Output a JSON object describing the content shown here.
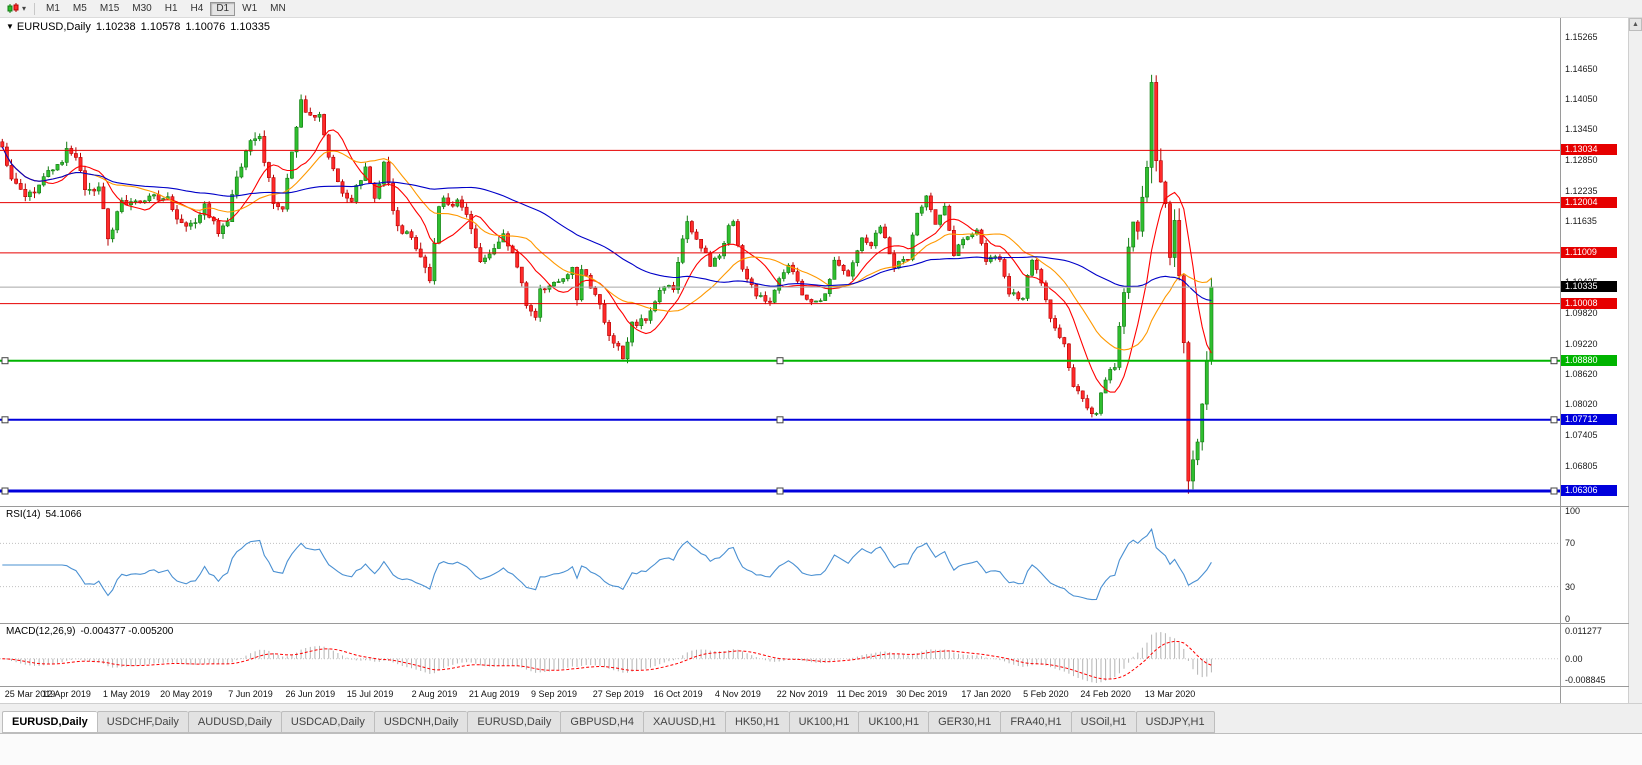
{
  "toolbar": {
    "timeframes": [
      {
        "label": "M1",
        "active": false
      },
      {
        "label": "M5",
        "active": false
      },
      {
        "label": "M15",
        "active": false
      },
      {
        "label": "M30",
        "active": false
      },
      {
        "label": "H1",
        "active": false
      },
      {
        "label": "H4",
        "active": false
      },
      {
        "label": "D1",
        "active": true
      },
      {
        "label": "W1",
        "active": false
      },
      {
        "label": "MN",
        "active": false
      }
    ]
  },
  "chart": {
    "header": {
      "marker": "▼",
      "symbol": "EURUSD,Daily",
      "open": "1.10238",
      "high": "1.10578",
      "low": "1.10076",
      "close": "1.10335"
    },
    "price_axis": {
      "min": 1.0601,
      "max": 1.1565,
      "ticks": [
        "1.15265",
        "1.14650",
        "1.14050",
        "1.13450",
        "1.12850",
        "1.12235",
        "1.11635",
        "1.10435",
        "1.09820",
        "1.09220",
        "1.08620",
        "1.08020",
        "1.07405",
        "1.06805"
      ]
    },
    "hlines": [
      {
        "price": 1.13034,
        "label": "1.13034",
        "color": "#e60000",
        "width": 1,
        "handles": false
      },
      {
        "price": 1.12004,
        "label": "1.12004",
        "color": "#e60000",
        "width": 1,
        "handles": false
      },
      {
        "price": 1.11009,
        "label": "1.11009",
        "color": "#e60000",
        "width": 1,
        "handles": false
      },
      {
        "price": 1.10008,
        "label": "1.10008",
        "color": "#e60000",
        "width": 1,
        "handles": false
      },
      {
        "price": 1.0888,
        "label": "1.08880",
        "color": "#00b400",
        "width": 2,
        "handles": true
      },
      {
        "price": 1.07712,
        "label": "1.07712",
        "color": "#0000dc",
        "width": 2,
        "handles": true
      },
      {
        "price": 1.06306,
        "label": "1.06306",
        "color": "#0000dc",
        "width": 3,
        "handles": true
      }
    ],
    "current_price": {
      "value": 1.10335,
      "label": "1.10335",
      "line_color": "#a6a6a6",
      "tag_bg": "#000000"
    },
    "candle_colors": {
      "bull_fill": "#2fbe2f",
      "bull_border": "#127a12",
      "bear_fill": "#ff2a2a",
      "bear_border": "#b40000"
    }
  },
  "chart_data": {
    "type": "candlestick",
    "symbol": "EURUSD",
    "timeframe": "Daily",
    "candle_count": 264,
    "data_width_fraction": 0.778,
    "note": "anchors are [candle_index, close_price, typical_daily_range] read off the chart; candles between anchors are interpolated",
    "anchors": [
      [
        0,
        1.131,
        0.003
      ],
      [
        2,
        1.1245,
        0.0026
      ],
      [
        4,
        1.1218,
        0.0022
      ],
      [
        7,
        1.1221,
        0.0022
      ],
      [
        10,
        1.1261,
        0.0022
      ],
      [
        12,
        1.1274,
        0.0022
      ],
      [
        14,
        1.1298,
        0.0024
      ],
      [
        16,
        1.1282,
        0.0024
      ],
      [
        18,
        1.1232,
        0.0026
      ],
      [
        21,
        1.1224,
        0.0024
      ],
      [
        23,
        1.1133,
        0.0028
      ],
      [
        24,
        1.115,
        0.0024
      ],
      [
        26,
        1.1195,
        0.0024
      ],
      [
        29,
        1.12,
        0.002
      ],
      [
        33,
        1.1216,
        0.002
      ],
      [
        36,
        1.1205,
        0.0018
      ],
      [
        39,
        1.1158,
        0.002
      ],
      [
        42,
        1.1153,
        0.002
      ],
      [
        44,
        1.1204,
        0.0022
      ],
      [
        47,
        1.1132,
        0.0022
      ],
      [
        49,
        1.1168,
        0.0026
      ],
      [
        51,
        1.1252,
        0.0026
      ],
      [
        54,
        1.1334,
        0.0028
      ],
      [
        56,
        1.1328,
        0.0022
      ],
      [
        59,
        1.1207,
        0.0026
      ],
      [
        61,
        1.1194,
        0.002
      ],
      [
        63,
        1.1294,
        0.0026
      ],
      [
        65,
        1.14,
        0.0028
      ],
      [
        67,
        1.137,
        0.002
      ],
      [
        69,
        1.1373,
        0.0018
      ],
      [
        71,
        1.1287,
        0.0024
      ],
      [
        74,
        1.1227,
        0.0022
      ],
      [
        76,
        1.1208,
        0.0018
      ],
      [
        79,
        1.127,
        0.0018
      ],
      [
        81,
        1.1212,
        0.0022
      ],
      [
        83,
        1.1277,
        0.0022
      ],
      [
        86,
        1.1151,
        0.0022
      ],
      [
        89,
        1.1128,
        0.0018
      ],
      [
        92,
        1.1076,
        0.0026
      ],
      [
        93,
        1.1035,
        0.003
      ],
      [
        95,
        1.1203,
        0.0028
      ],
      [
        99,
        1.1199,
        0.0016
      ],
      [
        101,
        1.1171,
        0.002
      ],
      [
        104,
        1.109,
        0.0022
      ],
      [
        106,
        1.11,
        0.0016
      ],
      [
        109,
        1.1144,
        0.0022
      ],
      [
        112,
        1.1079,
        0.0018
      ],
      [
        114,
        1.0989,
        0.0026
      ],
      [
        116,
        1.0973,
        0.0022
      ],
      [
        117,
        1.1034,
        0.0022
      ],
      [
        121,
        1.1043,
        0.0016
      ],
      [
        124,
        1.1073,
        0.0016
      ],
      [
        125,
        1.1005,
        0.0022
      ],
      [
        126,
        1.1072,
        0.0022
      ],
      [
        129,
        1.1017,
        0.0016
      ],
      [
        132,
        1.0945,
        0.0022
      ],
      [
        133,
        1.0921,
        0.0018
      ],
      [
        135,
        1.0899,
        0.0022
      ],
      [
        137,
        1.0959,
        0.0018
      ],
      [
        140,
        1.0973,
        0.0014
      ],
      [
        144,
        1.104,
        0.0018
      ],
      [
        146,
        1.1033,
        0.0016
      ],
      [
        148,
        1.1125,
        0.0022
      ],
      [
        149,
        1.1171,
        0.0022
      ],
      [
        151,
        1.1127,
        0.0016
      ],
      [
        154,
        1.108,
        0.0016
      ],
      [
        156,
        1.1099,
        0.0014
      ],
      [
        158,
        1.115,
        0.0014
      ],
      [
        159,
        1.1166,
        0.0014
      ],
      [
        161,
        1.1075,
        0.002
      ],
      [
        164,
        1.1018,
        0.0018
      ],
      [
        167,
        1.1007,
        0.0014
      ],
      [
        169,
        1.1052,
        0.0014
      ],
      [
        171,
        1.1078,
        0.0012
      ],
      [
        174,
        1.1021,
        0.0016
      ],
      [
        177,
        1.1001,
        0.0012
      ],
      [
        179,
        1.1018,
        0.0012
      ],
      [
        181,
        1.1082,
        0.0016
      ],
      [
        184,
        1.1059,
        0.0014
      ],
      [
        187,
        1.113,
        0.0016
      ],
      [
        189,
        1.112,
        0.0012
      ],
      [
        191,
        1.1153,
        0.0012
      ],
      [
        194,
        1.1077,
        0.0016
      ],
      [
        197,
        1.1087,
        0.001
      ],
      [
        199,
        1.1176,
        0.0016
      ],
      [
        201,
        1.1212,
        0.0016
      ],
      [
        203,
        1.116,
        0.0014
      ],
      [
        205,
        1.1196,
        0.0014
      ],
      [
        207,
        1.1103,
        0.0018
      ],
      [
        210,
        1.1134,
        0.0012
      ],
      [
        212,
        1.115,
        0.0012
      ],
      [
        214,
        1.109,
        0.0016
      ],
      [
        217,
        1.1093,
        0.0012
      ],
      [
        219,
        1.1024,
        0.0016
      ],
      [
        222,
        1.101,
        0.0012
      ],
      [
        224,
        1.1093,
        0.0018
      ],
      [
        226,
        1.1044,
        0.0016
      ],
      [
        229,
        1.0945,
        0.002
      ],
      [
        231,
        1.0917,
        0.0016
      ],
      [
        233,
        1.084,
        0.0018
      ],
      [
        236,
        1.0792,
        0.0016
      ],
      [
        238,
        1.0785,
        0.0018
      ],
      [
        240,
        1.0854,
        0.0018
      ],
      [
        242,
        1.088,
        0.0016
      ],
      [
        244,
        1.1026,
        0.003
      ],
      [
        246,
        1.1173,
        0.0038
      ],
      [
        247,
        1.1135,
        0.004
      ],
      [
        249,
        1.1285,
        0.0045
      ],
      [
        250,
        1.145,
        0.007
      ],
      [
        251,
        1.1281,
        0.0055
      ],
      [
        253,
        1.1184,
        0.0045
      ],
      [
        254,
        1.1106,
        0.004
      ],
      [
        255,
        1.1183,
        0.0048
      ],
      [
        257,
        1.0916,
        0.0058
      ],
      [
        258,
        1.0672,
        0.0055
      ],
      [
        260,
        1.0729,
        0.0042
      ],
      [
        261,
        1.0788,
        0.004
      ],
      [
        262,
        1.0883,
        0.0038
      ],
      [
        263,
        1.10335,
        0.0034
      ]
    ],
    "date_labels": [
      [
        "25 Mar 2019",
        0
      ],
      [
        "12 Apr 2019",
        14
      ],
      [
        "1 May 2019",
        27
      ],
      [
        "20 May 2019",
        40
      ],
      [
        "7 Jun 2019",
        54
      ],
      [
        "26 Jun 2019",
        67
      ],
      [
        "15 Jul 2019",
        80
      ],
      [
        "2 Aug 2019",
        94
      ],
      [
        "21 Aug 2019",
        107
      ],
      [
        "9 Sep 2019",
        120
      ],
      [
        "27 Sep 2019",
        134
      ],
      [
        "16 Oct 2019",
        147
      ],
      [
        "4 Nov 2019",
        160
      ],
      [
        "22 Nov 2019",
        174
      ],
      [
        "11 Dec 2019",
        187
      ],
      [
        "30 Dec 2019",
        200
      ],
      [
        "17 Jan 2020",
        214
      ],
      [
        "5 Feb 2020",
        227
      ],
      [
        "24 Feb 2020",
        240
      ],
      [
        "13 Mar 2020",
        254
      ]
    ],
    "moving_averages": [
      {
        "name": "fast",
        "period": 10,
        "color": "#ff0000"
      },
      {
        "name": "medium",
        "period": 21,
        "color": "#ff9900"
      },
      {
        "name": "slow",
        "period": 55,
        "color": "#0000c8"
      }
    ]
  },
  "rsi": {
    "name": "RSI(14)",
    "value": "54.1066",
    "levels": [
      "100",
      "70",
      "30",
      "0"
    ],
    "level_lines": [
      70,
      30
    ],
    "line_color": "#4a90d2"
  },
  "macd": {
    "name": "MACD(12,26,9)",
    "values": "-0.004377 -0.005200",
    "axis_labels": [
      "0.011277",
      "0.00",
      "-0.008845"
    ],
    "max": 0.011277,
    "min": -0.008845,
    "histogram_color": "#b4b4b4",
    "signal_color": "#ff0000"
  },
  "tabs": [
    {
      "label": "EURUSD,Daily",
      "active": true
    },
    {
      "label": "USDCHF,Daily",
      "active": false
    },
    {
      "label": "AUDUSD,Daily",
      "active": false
    },
    {
      "label": "USDCAD,Daily",
      "active": false
    },
    {
      "label": "USDCNH,Daily",
      "active": false
    },
    {
      "label": "EURUSD,Daily",
      "active": false
    },
    {
      "label": "GBPUSD,H4",
      "active": false
    },
    {
      "label": "XAUUSD,H1",
      "active": false
    },
    {
      "label": "HK50,H1",
      "active": false
    },
    {
      "label": "UK100,H1",
      "active": false
    },
    {
      "label": "UK100,H1",
      "active": false
    },
    {
      "label": "GER30,H1",
      "active": false
    },
    {
      "label": "FRA40,H1",
      "active": false
    },
    {
      "label": "USOil,H1",
      "active": false
    },
    {
      "label": "USDJPY,H1",
      "active": false
    }
  ],
  "scrollbar": {
    "up_arrow": "▲"
  }
}
